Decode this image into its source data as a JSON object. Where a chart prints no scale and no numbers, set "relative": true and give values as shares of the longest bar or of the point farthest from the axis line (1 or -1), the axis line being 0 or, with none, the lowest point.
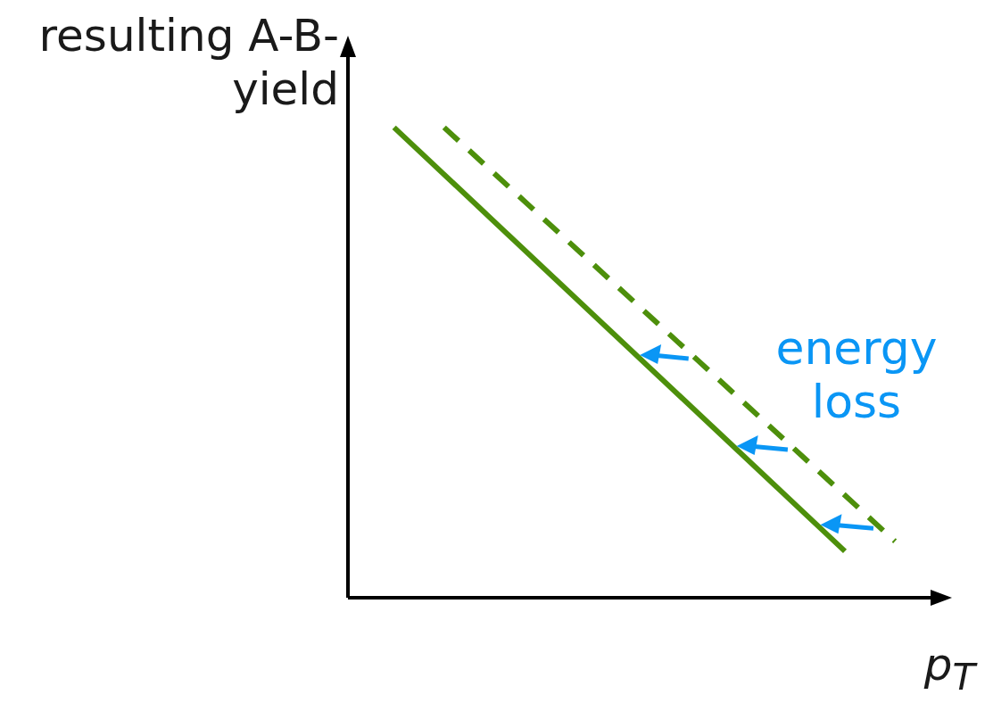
{
  "chart_data": {
    "type": "line",
    "relative": true,
    "ylabel": "resulting A-B-yield",
    "xlabel": "p$_{T}$",
    "grid": false,
    "legend": false,
    "marker": "none",
    "categories": [
      null,
      null,
      null,
      null,
      null,
      null,
      null,
      null,
      null,
      null,
      null
    ],
    "annotations": [
      "energy loss"
    ],
    "series": [
      {
        "color": "#4d8f0b",
        "line_style": "solid",
        "values": [
          1,
          null,
          null,
          null,
          null,
          null,
          null,
          null,
          null,
          0.099,
          null
        ]
      },
      {
        "color": "#4d8f0b",
        "line_style": "dashed",
        "values": [
          null,
          1,
          null,
          null,
          null,
          null,
          null,
          null,
          null,
          null,
          0.12
        ]
      }
    ]
  }
}
